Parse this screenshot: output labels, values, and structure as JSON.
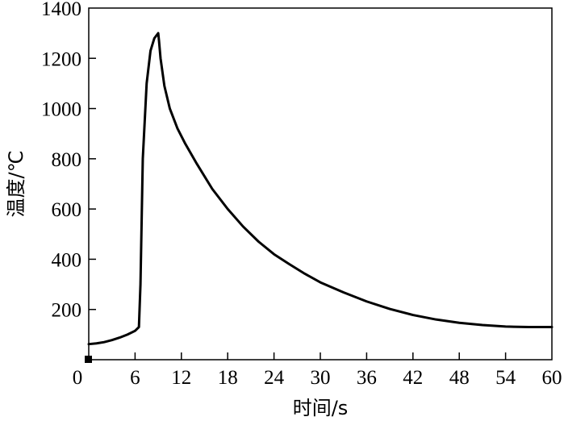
{
  "chart_data": {
    "type": "line",
    "title": "",
    "xlabel": "时间/s",
    "ylabel": "温度/℃",
    "xlim": [
      0,
      60
    ],
    "ylim": [
      0,
      1400
    ],
    "xticks": [
      0,
      6,
      12,
      18,
      24,
      30,
      36,
      42,
      48,
      54,
      60
    ],
    "yticks": [
      200,
      400,
      600,
      800,
      1000,
      1200,
      1400
    ],
    "grid": false,
    "legend": "none",
    "line_color": "#000000",
    "series": [
      {
        "x": [
          0,
          1,
          2,
          3,
          4,
          5,
          6,
          6.5,
          6.7,
          7.0,
          7.5,
          8.0,
          8.5,
          9.0,
          9.1,
          9.3,
          9.8,
          10.5,
          11.5,
          12.5,
          14,
          16,
          18,
          20,
          22,
          24,
          26,
          28,
          30,
          33,
          36,
          39,
          42,
          45,
          48,
          51,
          54,
          57,
          60
        ],
        "values": [
          62,
          65,
          70,
          78,
          88,
          100,
          115,
          130,
          300,
          800,
          1100,
          1230,
          1280,
          1300,
          1270,
          1200,
          1090,
          1000,
          920,
          860,
          780,
          680,
          600,
          530,
          470,
          420,
          380,
          342,
          308,
          268,
          232,
          202,
          178,
          160,
          147,
          138,
          132,
          130,
          130
        ]
      }
    ]
  }
}
